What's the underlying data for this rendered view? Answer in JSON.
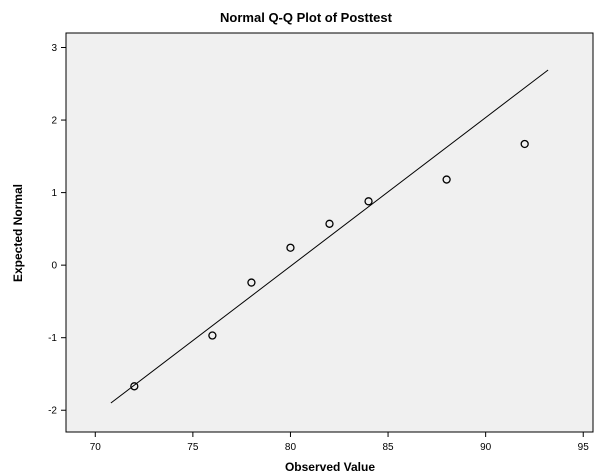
{
  "chart_data": {
    "type": "scatter",
    "title": "Normal Q-Q Plot of Posttest",
    "xlabel": "Observed Value",
    "ylabel": "Expected Normal",
    "xlim": [
      68.5,
      95.5
    ],
    "ylim": [
      -2.3,
      3.2
    ],
    "x_ticks": [
      "70",
      "75",
      "80",
      "85",
      "90",
      "95"
    ],
    "y_ticks": [
      "-2",
      "-1",
      "0",
      "1",
      "2",
      "3"
    ],
    "grid": false,
    "plot_background": "#f0f0f0",
    "point_color": "#000000",
    "points": [
      {
        "x": 72,
        "y": -1.67
      },
      {
        "x": 76,
        "y": -0.97
      },
      {
        "x": 78,
        "y": -0.24
      },
      {
        "x": 80,
        "y": 0.24
      },
      {
        "x": 82,
        "y": 0.57
      },
      {
        "x": 84,
        "y": 0.88
      },
      {
        "x": 88,
        "y": 1.18
      },
      {
        "x": 92,
        "y": 1.67
      }
    ],
    "reference_line": {
      "x": [
        70.8,
        93.2
      ],
      "y": [
        -1.9,
        2.69
      ]
    }
  }
}
